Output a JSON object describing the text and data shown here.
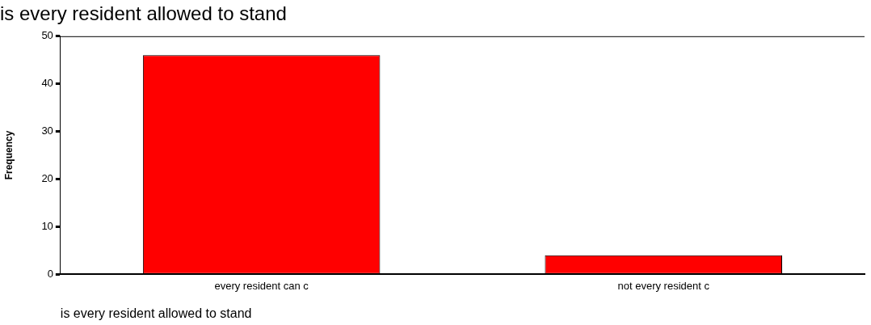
{
  "chart_data": {
    "type": "bar",
    "title": "is every resident allowed to stand",
    "xlabel": "is every resident allowed to stand",
    "ylabel": "Frequency",
    "categories": [
      "every resident can c",
      "not every resident c"
    ],
    "values": [
      46,
      4
    ],
    "color": "#ff0000",
    "ylim": [
      0,
      50
    ],
    "yticks": [
      0,
      10,
      20,
      30,
      40,
      50
    ],
    "grid": false,
    "legend": false
  }
}
